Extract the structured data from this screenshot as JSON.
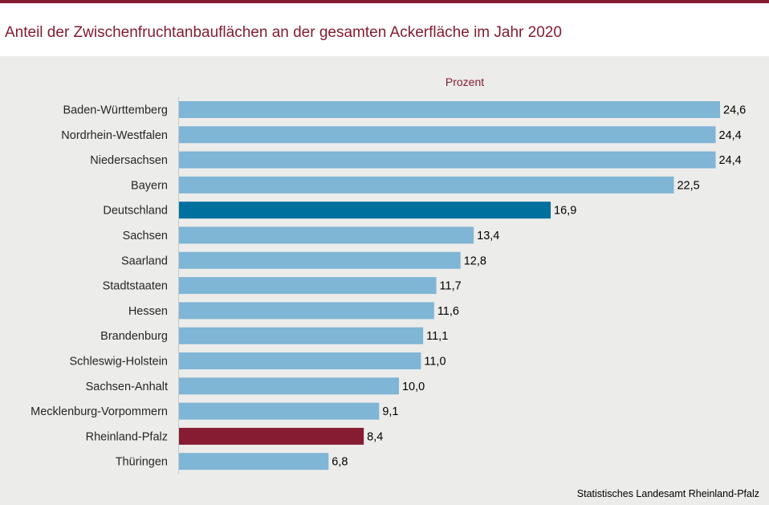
{
  "title": "Anteil der Zwischenfruchtanbauflächen an der gesamten Ackerfläche im Jahr 2020",
  "source": "Statistisches Landesamt Rheinland-Pfalz",
  "colors": {
    "accent": "#851c32",
    "bar_default": "#7fb5d5",
    "bar_germany": "#00709e",
    "bar_rlp": "#851c32",
    "text": "#262626"
  },
  "chart_data": {
    "type": "bar",
    "orientation": "horizontal",
    "title": "Anteil der Zwischenfruchtanbauflächen an der gesamten Ackerfläche im Jahr 2020",
    "unit_label": "Prozent",
    "xlabel": "Prozent",
    "ylabel": "",
    "xlim": [
      0,
      24.6
    ],
    "grid": false,
    "categories": [
      "Baden-Württemberg",
      "Nordrhein-Westfalen",
      "Niedersachsen",
      "Bayern",
      "Deutschland",
      "Sachsen",
      "Saarland",
      "Stadtstaaten",
      "Hessen",
      "Brandenburg",
      "Schleswig-Holstein",
      "Sachsen-Anhalt",
      "Mecklenburg-Vorpommern",
      "Rheinland-Pfalz",
      "Thüringen"
    ],
    "values": [
      24.6,
      24.4,
      24.4,
      22.5,
      16.9,
      13.4,
      12.8,
      11.7,
      11.6,
      11.1,
      11.0,
      10.0,
      9.1,
      8.4,
      6.8
    ],
    "value_labels": [
      "24,6",
      "24,4",
      "24,4",
      "22,5",
      "16,9",
      "13,4",
      "12,8",
      "11,7",
      "11,6",
      "11,1",
      "11,0",
      "10,0",
      "9,1",
      "8,4",
      "6,8"
    ],
    "highlight": {
      "Deutschland": "germany",
      "Rheinland-Pfalz": "rlp"
    }
  }
}
